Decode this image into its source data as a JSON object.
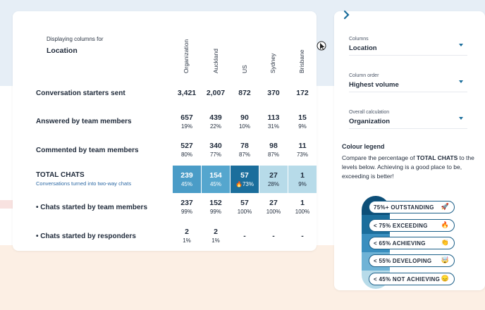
{
  "main": {
    "displaying_label": "Displaying columns for",
    "displaying_value": "Location",
    "columns": [
      "Organization",
      "Auckland",
      "US",
      "Sydney",
      "Brisbane"
    ],
    "rows": [
      {
        "label": "Conversation starters sent",
        "sub": "",
        "cells": [
          {
            "num": "3,421",
            "pct": ""
          },
          {
            "num": "2,007",
            "pct": ""
          },
          {
            "num": "872",
            "pct": ""
          },
          {
            "num": "370",
            "pct": ""
          },
          {
            "num": "172",
            "pct": ""
          }
        ]
      },
      {
        "label": "Answered by team members",
        "sub": "",
        "cells": [
          {
            "num": "657",
            "pct": "19%"
          },
          {
            "num": "439",
            "pct": "22%"
          },
          {
            "num": "90",
            "pct": "10%"
          },
          {
            "num": "113",
            "pct": "31%"
          },
          {
            "num": "15",
            "pct": "9%"
          }
        ]
      },
      {
        "label": "Commented by team members",
        "sub": "",
        "cells": [
          {
            "num": "527",
            "pct": "80%"
          },
          {
            "num": "340",
            "pct": "77%"
          },
          {
            "num": "78",
            "pct": "87%"
          },
          {
            "num": "98",
            "pct": "87%"
          },
          {
            "num": "11",
            "pct": "73%"
          }
        ]
      },
      {
        "label": "TOTAL CHATS",
        "sub": "Conversations turned into two-way chats",
        "cells": [
          {
            "num": "239",
            "pct": "45%"
          },
          {
            "num": "154",
            "pct": "45%"
          },
          {
            "num": "57",
            "pct": "🔥73%"
          },
          {
            "num": "27",
            "pct": "28%"
          },
          {
            "num": "1",
            "pct": "9%"
          }
        ]
      },
      {
        "label": "• Chats started by team members",
        "sub": "",
        "cells": [
          {
            "num": "237",
            "pct": "99%"
          },
          {
            "num": "152",
            "pct": "99%"
          },
          {
            "num": "57",
            "pct": "100%"
          },
          {
            "num": "27",
            "pct": "100%"
          },
          {
            "num": "1",
            "pct": "100%"
          }
        ]
      },
      {
        "label": "• Chats started by responders",
        "sub": "",
        "cells": [
          {
            "num": "2",
            "pct": "1%"
          },
          {
            "num": "2",
            "pct": "1%"
          },
          {
            "num": "-",
            "pct": ""
          },
          {
            "num": "-",
            "pct": ""
          },
          {
            "num": "-",
            "pct": ""
          }
        ]
      }
    ]
  },
  "sidebar": {
    "columns_label": "Columns",
    "columns_value": "Location",
    "order_label": "Column order",
    "order_value": "Highest volume",
    "calc_label": "Overall calculation",
    "calc_value": "Organization",
    "legend_title": "Colour legend",
    "legend_desc_pre": "Compare the percentage of ",
    "legend_desc_bold": "TOTAL CHATS",
    "legend_desc_post": " to the levels below. Achieving is a good place to be, exceeding is better!",
    "legend": [
      {
        "label": "75%+  OUTSTANDING",
        "emoji": "🚀",
        "color": "#0d4f78"
      },
      {
        "label": "< 75%  EXCEEDING",
        "emoji": "🔥",
        "color": "#1b6e9c"
      },
      {
        "label": "< 65%  ACHIEVING",
        "emoji": "👏",
        "color": "#3a8fbf"
      },
      {
        "label": "< 55%  DEVELOPING",
        "emoji": "🤯",
        "color": "#6fb3d6"
      },
      {
        "label": "< 45%  NOT ACHIEVING",
        "emoji": "😞",
        "color": "#b7dbe9"
      }
    ]
  }
}
